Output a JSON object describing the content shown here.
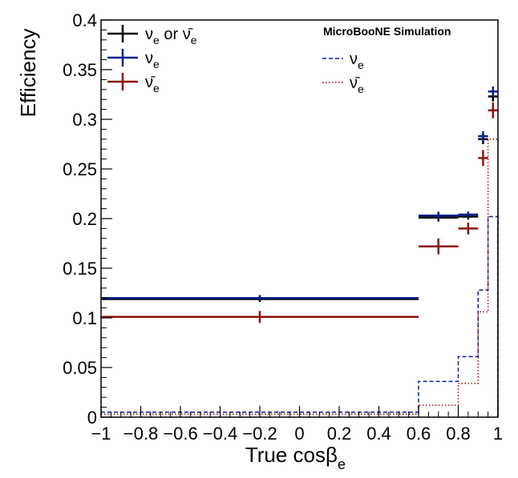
{
  "chart_data": {
    "type": "histogram",
    "title": "",
    "xlabel": {
      "main": "True cos",
      "beta": "β",
      "sub": "e"
    },
    "ylabel": "Efficiency",
    "xlim": [
      -1,
      1
    ],
    "ylim": [
      0,
      0.4
    ],
    "grid": false,
    "annotation": "MicroBooNE Simulation",
    "x_ticks": [
      "−1",
      "−0.8",
      "−0.6",
      "−0.4",
      "−0.2",
      "0",
      "0.2",
      "0.4",
      "0.6",
      "0.8",
      "1"
    ],
    "y_ticks": [
      "0",
      "0.05",
      "0.1",
      "0.15",
      "0.2",
      "0.25",
      "0.3",
      "0.35",
      "0.4"
    ],
    "legend_left": [
      {
        "label": "ν",
        "sub": "e",
        "mid": " or ",
        "label2": "ν̄",
        "sub2": "e",
        "color": "#000000"
      },
      {
        "label": "ν",
        "sub": "e",
        "color": "#0a1f8f"
      },
      {
        "label": "ν̄",
        "sub": "e",
        "color": "#8b0f0f"
      }
    ],
    "legend_right": [
      {
        "label": "ν",
        "sub": "e",
        "color": "#0a1f8f",
        "style": "dashed"
      },
      {
        "label": "ν̄",
        "sub": "e",
        "color": "#8b0f0f",
        "style": "dotted"
      }
    ],
    "series": [
      {
        "name": "νe or ν̄e efficiency",
        "kind": "errorbars",
        "color": "#000000",
        "points": [
          {
            "xlo": -1,
            "xhi": 0.6,
            "y": 0.119,
            "err": 0.003
          },
          {
            "xlo": 0.6,
            "xhi": 0.8,
            "y": 0.201,
            "err": 0.004
          },
          {
            "xlo": 0.8,
            "xhi": 0.9,
            "y": 0.202,
            "err": 0.003
          },
          {
            "xlo": 0.9,
            "xhi": 0.95,
            "y": 0.28,
            "err": 0.005
          },
          {
            "xlo": 0.95,
            "xhi": 1.0,
            "y": 0.323,
            "err": 0.005
          }
        ]
      },
      {
        "name": "νe efficiency",
        "kind": "errorbars",
        "color": "#0a1f8f",
        "points": [
          {
            "xlo": -1,
            "xhi": 0.6,
            "y": 0.12,
            "err": 0.003
          },
          {
            "xlo": 0.6,
            "xhi": 0.8,
            "y": 0.203,
            "err": 0.004
          },
          {
            "xlo": 0.8,
            "xhi": 0.9,
            "y": 0.204,
            "err": 0.003
          },
          {
            "xlo": 0.9,
            "xhi": 0.95,
            "y": 0.283,
            "err": 0.005
          },
          {
            "xlo": 0.95,
            "xhi": 1.0,
            "y": 0.328,
            "err": 0.005
          }
        ]
      },
      {
        "name": "ν̄e efficiency",
        "kind": "errorbars",
        "color": "#8b0f0f",
        "points": [
          {
            "xlo": -1,
            "xhi": 0.6,
            "y": 0.101,
            "err": 0.006
          },
          {
            "xlo": 0.6,
            "xhi": 0.8,
            "y": 0.172,
            "err": 0.008
          },
          {
            "xlo": 0.8,
            "xhi": 0.9,
            "y": 0.19,
            "err": 0.006
          },
          {
            "xlo": 0.9,
            "xhi": 0.95,
            "y": 0.261,
            "err": 0.008
          },
          {
            "xlo": 0.95,
            "xhi": 1.0,
            "y": 0.309,
            "err": 0.008
          }
        ]
      },
      {
        "name": "νe distribution",
        "kind": "step",
        "style": "dashed",
        "color": "#0a1f8f",
        "edges": [
          -1,
          0.6,
          0.8,
          0.9,
          0.95,
          1.0
        ],
        "values": [
          0.005,
          0.036,
          0.061,
          0.128,
          0.202
        ]
      },
      {
        "name": "ν̄e distribution",
        "kind": "step",
        "style": "dotted",
        "color": "#8b0f0f",
        "edges": [
          -1,
          0.6,
          0.8,
          0.9,
          0.95,
          1.0
        ],
        "values": [
          0.003,
          0.012,
          0.034,
          0.106,
          0.28
        ]
      }
    ]
  }
}
